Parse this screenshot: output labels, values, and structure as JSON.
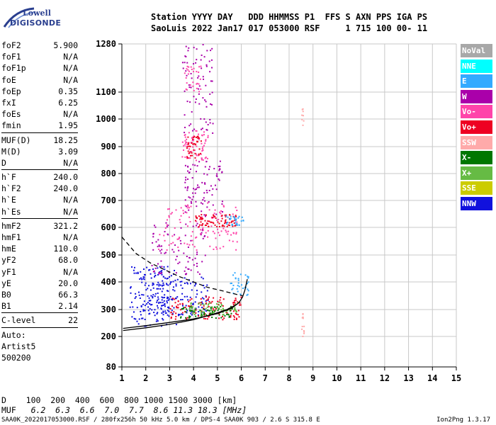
{
  "logo": {
    "line1": "Lowell",
    "line2": "DIGISONDE"
  },
  "header": {
    "line1": "Station YYYY DAY   DDD HHMMSS P1  FFS S AXN PPS IGA PS",
    "line2": "SaoLuis 2022 Jan17 017 053000 RSF     1 715 100 00- 11"
  },
  "params_group1": [
    {
      "key": "foF2",
      "value": "5.900"
    },
    {
      "key": "foF1",
      "value": "N/A"
    },
    {
      "key": "foF1p",
      "value": "N/A"
    },
    {
      "key": "foE",
      "value": "N/A"
    },
    {
      "key": "foEp",
      "value": "0.35"
    },
    {
      "key": "fxI",
      "value": "6.25"
    },
    {
      "key": "foEs",
      "value": "N/A"
    },
    {
      "key": "fmin",
      "value": "1.95"
    }
  ],
  "params_group2": [
    {
      "key": "MUF(D)",
      "value": "18.25"
    },
    {
      "key": "M(D)",
      "value": "3.09"
    },
    {
      "key": "D",
      "value": "N/A"
    }
  ],
  "params_group3": [
    {
      "key": "h`F",
      "value": "240.0"
    },
    {
      "key": "h`F2",
      "value": "240.0"
    },
    {
      "key": "h`E",
      "value": "N/A"
    },
    {
      "key": "h`Es",
      "value": "N/A"
    }
  ],
  "params_group4": [
    {
      "key": "hmF2",
      "value": "321.2"
    },
    {
      "key": "hmF1",
      "value": "N/A"
    },
    {
      "key": "hmE",
      "value": "110.0"
    },
    {
      "key": "yF2",
      "value": "68.0"
    },
    {
      "key": "yF1",
      "value": "N/A"
    },
    {
      "key": "yE",
      "value": "20.0"
    },
    {
      "key": "B0",
      "value": "66.3"
    },
    {
      "key": "B1",
      "value": "2.14"
    }
  ],
  "params_group5": [
    {
      "key": "C-level",
      "value": "22"
    }
  ],
  "auto_lines": [
    "Auto:",
    "Artist5",
    "500200"
  ],
  "legend": [
    {
      "label": "NoVal",
      "color": "#a8a8a8"
    },
    {
      "label": "NNE",
      "color": "#00ffff"
    },
    {
      "label": "E",
      "color": "#33aaff"
    },
    {
      "label": "W",
      "color": "#aa00aa"
    },
    {
      "label": "Vo-",
      "color": "#ff44aa"
    },
    {
      "label": "Vo+",
      "color": "#ee0022"
    },
    {
      "label": "SSW",
      "color": "#ffaaaa"
    },
    {
      "label": "X-",
      "color": "#007700"
    },
    {
      "label": "X+",
      "color": "#66bb44"
    },
    {
      "label": "SSE",
      "color": "#cccc00"
    },
    {
      "label": "NNW",
      "color": "#1111dd"
    }
  ],
  "muf_table": {
    "d_label": "D",
    "d_values": "100  200  400  600  800 1000 1500 3000 [km]",
    "muf_label": "MUF",
    "muf_values": "6.2  6.3  6.6  7.0  7.7  8.6 11.3 18.3 [MHz]"
  },
  "footer": {
    "left": "SAA0K_2022017053000.RSF / 280fx256h 50 kHz 5.0 km / DPS-4 SAA0K 903 / 2.6 S 315.8 E",
    "right": "Ion2Png 1.3.17"
  },
  "chart_data": {
    "type": "scatter",
    "title": "",
    "xlabel": "",
    "ylabel": "",
    "xlim": [
      1,
      15
    ],
    "ylim": [
      80,
      1280
    ],
    "xticks": [
      1,
      2,
      3,
      4,
      5,
      6,
      7,
      8,
      9,
      10,
      11,
      12,
      13,
      14,
      15
    ],
    "yticks": [
      80,
      200,
      300,
      400,
      500,
      600,
      700,
      800,
      900,
      1000,
      1100,
      1280
    ],
    "ytick_labels": [
      "80",
      "200",
      "300",
      "400",
      "500",
      "600",
      "700",
      "800",
      "900",
      "1000",
      "1100",
      "1280"
    ],
    "y_scale_note": "log-like height axis",
    "grid": true,
    "traces": [
      {
        "name": "profile_curve",
        "color": "#000000",
        "style": "solid",
        "x": [
          1.05,
          2.0,
          3.0,
          4.0,
          5.0,
          5.6,
          5.9,
          6.05,
          6.15,
          6.25
        ],
        "y": [
          230,
          240,
          252,
          265,
          285,
          305,
          325,
          345,
          370,
          410
        ]
      },
      {
        "name": "topside_lower",
        "color": "#000000",
        "style": "solid",
        "x": [
          1.05,
          2.0,
          3.0,
          4.0,
          4.8,
          5.4,
          5.8,
          5.95
        ],
        "y": [
          222,
          232,
          245,
          262,
          282,
          300,
          318,
          330
        ]
      },
      {
        "name": "extrapolated",
        "color": "#000000",
        "style": "dashed",
        "x": [
          1.0,
          1.6,
          2.2,
          2.8,
          3.4,
          4.0,
          4.6,
          5.2,
          5.8,
          6.05
        ],
        "y": [
          565,
          505,
          470,
          445,
          420,
          400,
          380,
          368,
          355,
          350
        ]
      }
    ],
    "clusters": [
      {
        "color": "#1111dd",
        "x": [
          1.3,
          3.3
        ],
        "y": [
          240,
          460
        ],
        "n": 160
      },
      {
        "color": "#1111dd",
        "x": [
          1.9,
          4.6
        ],
        "y": [
          280,
          420
        ],
        "n": 130
      },
      {
        "color": "#ee0022",
        "x": [
          3.0,
          6.0
        ],
        "y": [
          265,
          350
        ],
        "n": 120
      },
      {
        "color": "#007700",
        "x": [
          3.4,
          5.6
        ],
        "y": [
          270,
          315
        ],
        "n": 70
      },
      {
        "color": "#66bb44",
        "x": [
          3.8,
          5.9
        ],
        "y": [
          280,
          330
        ],
        "n": 60
      },
      {
        "color": "#33aaff",
        "x": [
          5.5,
          6.3
        ],
        "y": [
          350,
          440
        ],
        "n": 35
      },
      {
        "color": "#aa00aa",
        "x": [
          2.2,
          4.5
        ],
        "y": [
          430,
          620
        ],
        "n": 90
      },
      {
        "color": "#ff44aa",
        "x": [
          2.5,
          5.8
        ],
        "y": [
          520,
          700
        ],
        "n": 110
      },
      {
        "color": "#ee0022",
        "x": [
          4.0,
          5.8
        ],
        "y": [
          605,
          650
        ],
        "n": 80
      },
      {
        "color": "#33aaff",
        "x": [
          5.3,
          6.1
        ],
        "y": [
          610,
          645
        ],
        "n": 30
      },
      {
        "color": "#aa00aa",
        "x": [
          3.6,
          5.2
        ],
        "y": [
          640,
          860
        ],
        "n": 90
      },
      {
        "color": "#ff44aa",
        "x": [
          3.5,
          4.6
        ],
        "y": [
          850,
          960
        ],
        "n": 70
      },
      {
        "color": "#ee0022",
        "x": [
          3.7,
          4.3
        ],
        "y": [
          860,
          940
        ],
        "n": 40
      },
      {
        "color": "#aa00aa",
        "x": [
          3.5,
          4.8
        ],
        "y": [
          950,
          1280
        ],
        "n": 80
      },
      {
        "color": "#ff44aa",
        "x": [
          3.6,
          4.3
        ],
        "y": [
          1100,
          1200
        ],
        "n": 30
      },
      {
        "color": "#ffaaaa",
        "x": [
          8.5,
          8.6
        ],
        "y": [
          960,
          1040
        ],
        "n": 8
      },
      {
        "color": "#ffaaaa",
        "x": [
          8.5,
          8.6
        ],
        "y": [
          190,
          290
        ],
        "n": 12
      }
    ]
  }
}
